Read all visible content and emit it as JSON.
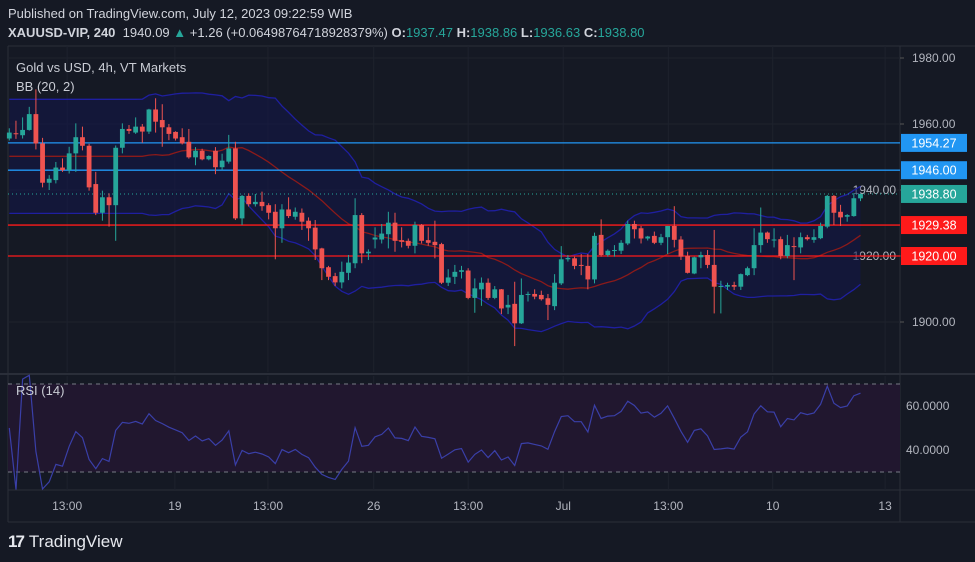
{
  "header": {
    "published": "Published on TradingView.com, July 12, 2023 09:22:59 WIB",
    "symbol": "XAUUSD-VIP, 240",
    "last": "1940.09",
    "change": "+1.26 (+0.06498764718928379%)",
    "o_label": "O:",
    "o": "1937.47",
    "h_label": "H:",
    "h": "1938.86",
    "l_label": "L:",
    "l": "1936.63",
    "c_label": "C:",
    "c": "1938.80",
    "arrow_icon": "triangle-up-icon"
  },
  "legend": {
    "title": "Gold vs USD, 4h, VT Markets",
    "bb": "BB (20, 2)",
    "rsi": "RSI (14)"
  },
  "footer": {
    "brand": "TradingView",
    "logo_icon": "tradingview-logo-icon"
  },
  "colors": {
    "up": "#26a69a",
    "down": "#ef5350",
    "bb_band": "#1f1fa0",
    "bb_basis": "#8b1a1a",
    "bb_fill": "#12164a",
    "level_blue": "#2196f3",
    "level_red": "#ff1a1a",
    "rsi_line": "#2a2f80",
    "rsi_fill": "#21172f"
  },
  "chart_data": [
    {
      "type": "candlestick",
      "title": "Gold vs USD, 4h, VT Markets",
      "indicator": "BB (20, 2)",
      "ylim": [
        1880,
        1990
      ],
      "y_ticks": [
        "1900.00",
        "1920.00",
        "1940.00",
        "1960.00",
        "1980.00"
      ],
      "y_tick_values": [
        1900,
        1920,
        1940,
        1960,
        1980
      ],
      "x_ticks": [
        {
          "label": "13:00",
          "index": 8.7
        },
        {
          "label": "19",
          "index": 24.9
        },
        {
          "label": "13:00",
          "index": 38.9
        },
        {
          "label": "26",
          "index": 54.8
        },
        {
          "label": "13:00",
          "index": 69
        },
        {
          "label": "Jul",
          "index": 83.3
        },
        {
          "label": "13:00",
          "index": 99.1
        },
        {
          "label": "10",
          "index": 114.8
        },
        {
          "label": "13",
          "index": 131.7
        }
      ],
      "grid": true,
      "levels": [
        {
          "value": 1954.27,
          "label": "1954.27",
          "color": "#2196f3",
          "style": "solid"
        },
        {
          "value": 1946.0,
          "label": "1946.00",
          "color": "#2196f3",
          "style": "solid"
        },
        {
          "value": 1938.8,
          "label": "1938.80",
          "color": "#26a69a",
          "style": "dotted"
        },
        {
          "value": 1929.38,
          "label": "1929.38",
          "color": "#ff1a1a",
          "style": "solid"
        },
        {
          "value": 1920.0,
          "label": "1920.00",
          "color": "#ff1a1a",
          "style": "solid"
        }
      ],
      "ohlc": [
        [
          1955.6,
          1958.7,
          1955,
          1957.4
        ],
        [
          1957.2,
          1961,
          1955.5,
          1956.9
        ],
        [
          1956.6,
          1962,
          1955.6,
          1958.2
        ],
        [
          1958.2,
          1965.2,
          1958,
          1963
        ],
        [
          1963,
          1970.5,
          1952.3,
          1954.1
        ],
        [
          1954.1,
          1955.8,
          1940.8,
          1942.2
        ],
        [
          1942.2,
          1944.5,
          1940,
          1943.4
        ],
        [
          1943,
          1948.5,
          1942,
          1946.8
        ],
        [
          1946.8,
          1949.6,
          1945.5,
          1946
        ],
        [
          1946,
          1953.1,
          1945,
          1951.1
        ],
        [
          1951.1,
          1960.2,
          1945.5,
          1956
        ],
        [
          1956,
          1959.2,
          1952,
          1953.4
        ],
        [
          1953.4,
          1954,
          1939.8,
          1940.8
        ],
        [
          1941.8,
          1945.5,
          1932.4,
          1933.1
        ],
        [
          1933.1,
          1939.8,
          1930.7,
          1937.8
        ],
        [
          1937.8,
          1939,
          1928.9,
          1935.4
        ],
        [
          1935.4,
          1953.5,
          1924.6,
          1952.8
        ],
        [
          1952.8,
          1960.2,
          1951.1,
          1958.5
        ],
        [
          1958.5,
          1959.7,
          1957,
          1957.9
        ],
        [
          1957.4,
          1962,
          1957,
          1959.2
        ],
        [
          1959.2,
          1960,
          1954.3,
          1957.7
        ],
        [
          1957.7,
          1964.6,
          1957,
          1964.4
        ],
        [
          1964.4,
          1967.8,
          1957.4,
          1960.7
        ],
        [
          1961.2,
          1966,
          1953.1,
          1959
        ],
        [
          1959,
          1960,
          1955.1,
          1957
        ],
        [
          1957.6,
          1957.8,
          1955,
          1955.6
        ],
        [
          1956,
          1958.7,
          1953.8,
          1954.1
        ],
        [
          1954.6,
          1958.5,
          1949.5,
          1949.9
        ],
        [
          1949.9,
          1953,
          1947.5,
          1951.9
        ],
        [
          1951.9,
          1952.5,
          1949,
          1949.3
        ],
        [
          1949.3,
          1950.5,
          1949,
          1950.3
        ],
        [
          1951.9,
          1953,
          1944.8,
          1946.9
        ],
        [
          1946.9,
          1951,
          1946,
          1948.9
        ],
        [
          1948.6,
          1956.7,
          1948,
          1952.6
        ],
        [
          1952.6,
          1954.6,
          1930.9,
          1931.4
        ],
        [
          1931.4,
          1938.5,
          1929.4,
          1938.2
        ],
        [
          1938.2,
          1939,
          1935,
          1935.7
        ],
        [
          1935.7,
          1938.8,
          1935,
          1936.4
        ],
        [
          1936.4,
          1939.5,
          1933.7,
          1935.1
        ],
        [
          1935.4,
          1936,
          1931.1,
          1933.1
        ],
        [
          1933.4,
          1935.7,
          1919,
          1928.4
        ],
        [
          1928.4,
          1935.7,
          1924,
          1934.1
        ],
        [
          1934.1,
          1937.8,
          1931.5,
          1932.1
        ],
        [
          1931.9,
          1934.7,
          1931,
          1933.4
        ],
        [
          1933.1,
          1934.4,
          1927.9,
          1930.4
        ],
        [
          1930.7,
          1931.7,
          1924.6,
          1928.4
        ],
        [
          1928.6,
          1930.9,
          1918.8,
          1922
        ],
        [
          1922.3,
          1922.5,
          1912.7,
          1916.3
        ],
        [
          1916.6,
          1917,
          1912.7,
          1913.7
        ],
        [
          1913.9,
          1914.9,
          1910.9,
          1912
        ],
        [
          1912,
          1918.3,
          1910.2,
          1915.2
        ],
        [
          1914.9,
          1920.3,
          1912.7,
          1918
        ],
        [
          1917.8,
          1937.5,
          1916.3,
          1932.4
        ],
        [
          1932.4,
          1933,
          1917.8,
          1920.8
        ],
        [
          1920.8,
          1922,
          1918.8,
          1921.3
        ],
        [
          1925,
          1928.7,
          1922.3,
          1925.6
        ],
        [
          1925,
          1929.7,
          1923.8,
          1926.8
        ],
        [
          1926.6,
          1933.4,
          1922.3,
          1930.1
        ],
        [
          1930.1,
          1933.1,
          1921.3,
          1924.6
        ],
        [
          1924.8,
          1928.7,
          1922.6,
          1924.3
        ],
        [
          1924.6,
          1925.3,
          1922.3,
          1923.1
        ],
        [
          1923.1,
          1930.4,
          1920.8,
          1929.4
        ],
        [
          1929.4,
          1929.7,
          1923.8,
          1924.6
        ],
        [
          1924.8,
          1928.7,
          1923.1,
          1924
        ],
        [
          1924.3,
          1930.7,
          1919.3,
          1923.3
        ],
        [
          1923.6,
          1924,
          1911.5,
          1911.9
        ],
        [
          1911.9,
          1916,
          1910.9,
          1913.5
        ],
        [
          1913.7,
          1917.3,
          1911.5,
          1915.2
        ],
        [
          1915.2,
          1917,
          1913.2,
          1915.7
        ],
        [
          1915.6,
          1916.3,
          1906.9,
          1907.3
        ],
        [
          1907.3,
          1913.2,
          1902.8,
          1910.2
        ],
        [
          1909.9,
          1913.5,
          1904.9,
          1911.9
        ],
        [
          1911.9,
          1913.2,
          1906.7,
          1907.3
        ],
        [
          1907.3,
          1910.9,
          1906.9,
          1909.9
        ],
        [
          1909.9,
          1910,
          1902.4,
          1904.1
        ],
        [
          1904.4,
          1908.2,
          1902.4,
          1905.2
        ],
        [
          1905.5,
          1912.2,
          1892.7,
          1899.6
        ],
        [
          1899.6,
          1913.2,
          1899.4,
          1908.2
        ],
        [
          1908.2,
          1909.2,
          1906.2,
          1908.5
        ],
        [
          1908.5,
          1909.9,
          1906.9,
          1907.7
        ],
        [
          1908.2,
          1909.5,
          1906.5,
          1906.9
        ],
        [
          1907.2,
          1908.5,
          1900.6,
          1905.2
        ],
        [
          1904.8,
          1914.5,
          1903.6,
          1911.9
        ],
        [
          1911.7,
          1923,
          1911.2,
          1919
        ],
        [
          1919,
          1920.3,
          1918.3,
          1919.4
        ],
        [
          1919.3,
          1919.8,
          1916,
          1917
        ],
        [
          1917.3,
          1920.6,
          1914.2,
          1917
        ],
        [
          1917,
          1920.6,
          1909.9,
          1912.9
        ],
        [
          1912.9,
          1927.1,
          1911.7,
          1926.1
        ],
        [
          1926.4,
          1931.1,
          1919.8,
          1920.3
        ],
        [
          1920.3,
          1922,
          1919.8,
          1921.6
        ],
        [
          1921.6,
          1923.3,
          1919.8,
          1921.8
        ],
        [
          1921.6,
          1924.8,
          1920.6,
          1924
        ],
        [
          1923.8,
          1930.7,
          1923.3,
          1929.7
        ],
        [
          1929.7,
          1930.7,
          1925.3,
          1928.1
        ],
        [
          1928.4,
          1929.1,
          1923.8,
          1925.3
        ],
        [
          1925.3,
          1926.1,
          1924.7,
          1925.9
        ],
        [
          1926.1,
          1927.4,
          1923.6,
          1924
        ],
        [
          1924,
          1926.7,
          1923.3,
          1925.7
        ],
        [
          1925.7,
          1929.1,
          1920.6,
          1929.1
        ],
        [
          1929.1,
          1935.1,
          1922.6,
          1924.9
        ],
        [
          1925,
          1926,
          1918.8,
          1919.8
        ],
        [
          1920,
          1921.3,
          1914.7,
          1914.9
        ],
        [
          1914.7,
          1919.8,
          1914.5,
          1919.6
        ],
        [
          1919.6,
          1921.3,
          1916.3,
          1920.3
        ],
        [
          1920.3,
          1921.8,
          1916.3,
          1917.3
        ],
        [
          1917.3,
          1927.9,
          1902.6,
          1910.7
        ],
        [
          1910.7,
          1912.5,
          1902.6,
          1910.9
        ],
        [
          1910.7,
          1911.9,
          1909.7,
          1911.2
        ],
        [
          1911.2,
          1912.2,
          1909.7,
          1910.7
        ],
        [
          1910.7,
          1914.7,
          1909.7,
          1914.5
        ],
        [
          1914.2,
          1916.8,
          1913.9,
          1916.3
        ],
        [
          1916.3,
          1928.4,
          1914.2,
          1923.3
        ],
        [
          1923.3,
          1934.7,
          1921,
          1927.1
        ],
        [
          1927.1,
          1927.4,
          1924,
          1925.1
        ],
        [
          1924.9,
          1928.4,
          1922.6,
          1925
        ],
        [
          1925.1,
          1925.9,
          1919,
          1920
        ],
        [
          1920,
          1926.4,
          1919.3,
          1923.3
        ],
        [
          1923,
          1925.7,
          1912.7,
          1922.8
        ],
        [
          1922.6,
          1927.1,
          1920.8,
          1925.7
        ],
        [
          1925.7,
          1926.4,
          1924.7,
          1925.1
        ],
        [
          1924.9,
          1928.1,
          1924,
          1925.7
        ],
        [
          1925.4,
          1930.1,
          1925.1,
          1929.1
        ],
        [
          1928.9,
          1938.5,
          1928.4,
          1938.2
        ],
        [
          1938.2,
          1938.5,
          1929.4,
          1933.1
        ],
        [
          1933.4,
          1935.5,
          1929.1,
          1931.7
        ],
        [
          1931.9,
          1932.7,
          1930.4,
          1932.4
        ],
        [
          1932.1,
          1939,
          1931.9,
          1937.5
        ],
        [
          1937.47,
          1938.86,
          1936.63,
          1938.8
        ]
      ]
    },
    {
      "type": "line",
      "title": "RSI (14)",
      "ylim": [
        20,
        75
      ],
      "y_ticks": [
        "40.0000",
        "60.0000"
      ],
      "y_tick_values": [
        40,
        60
      ],
      "bands": [
        30,
        70
      ],
      "period": 14
    }
  ]
}
